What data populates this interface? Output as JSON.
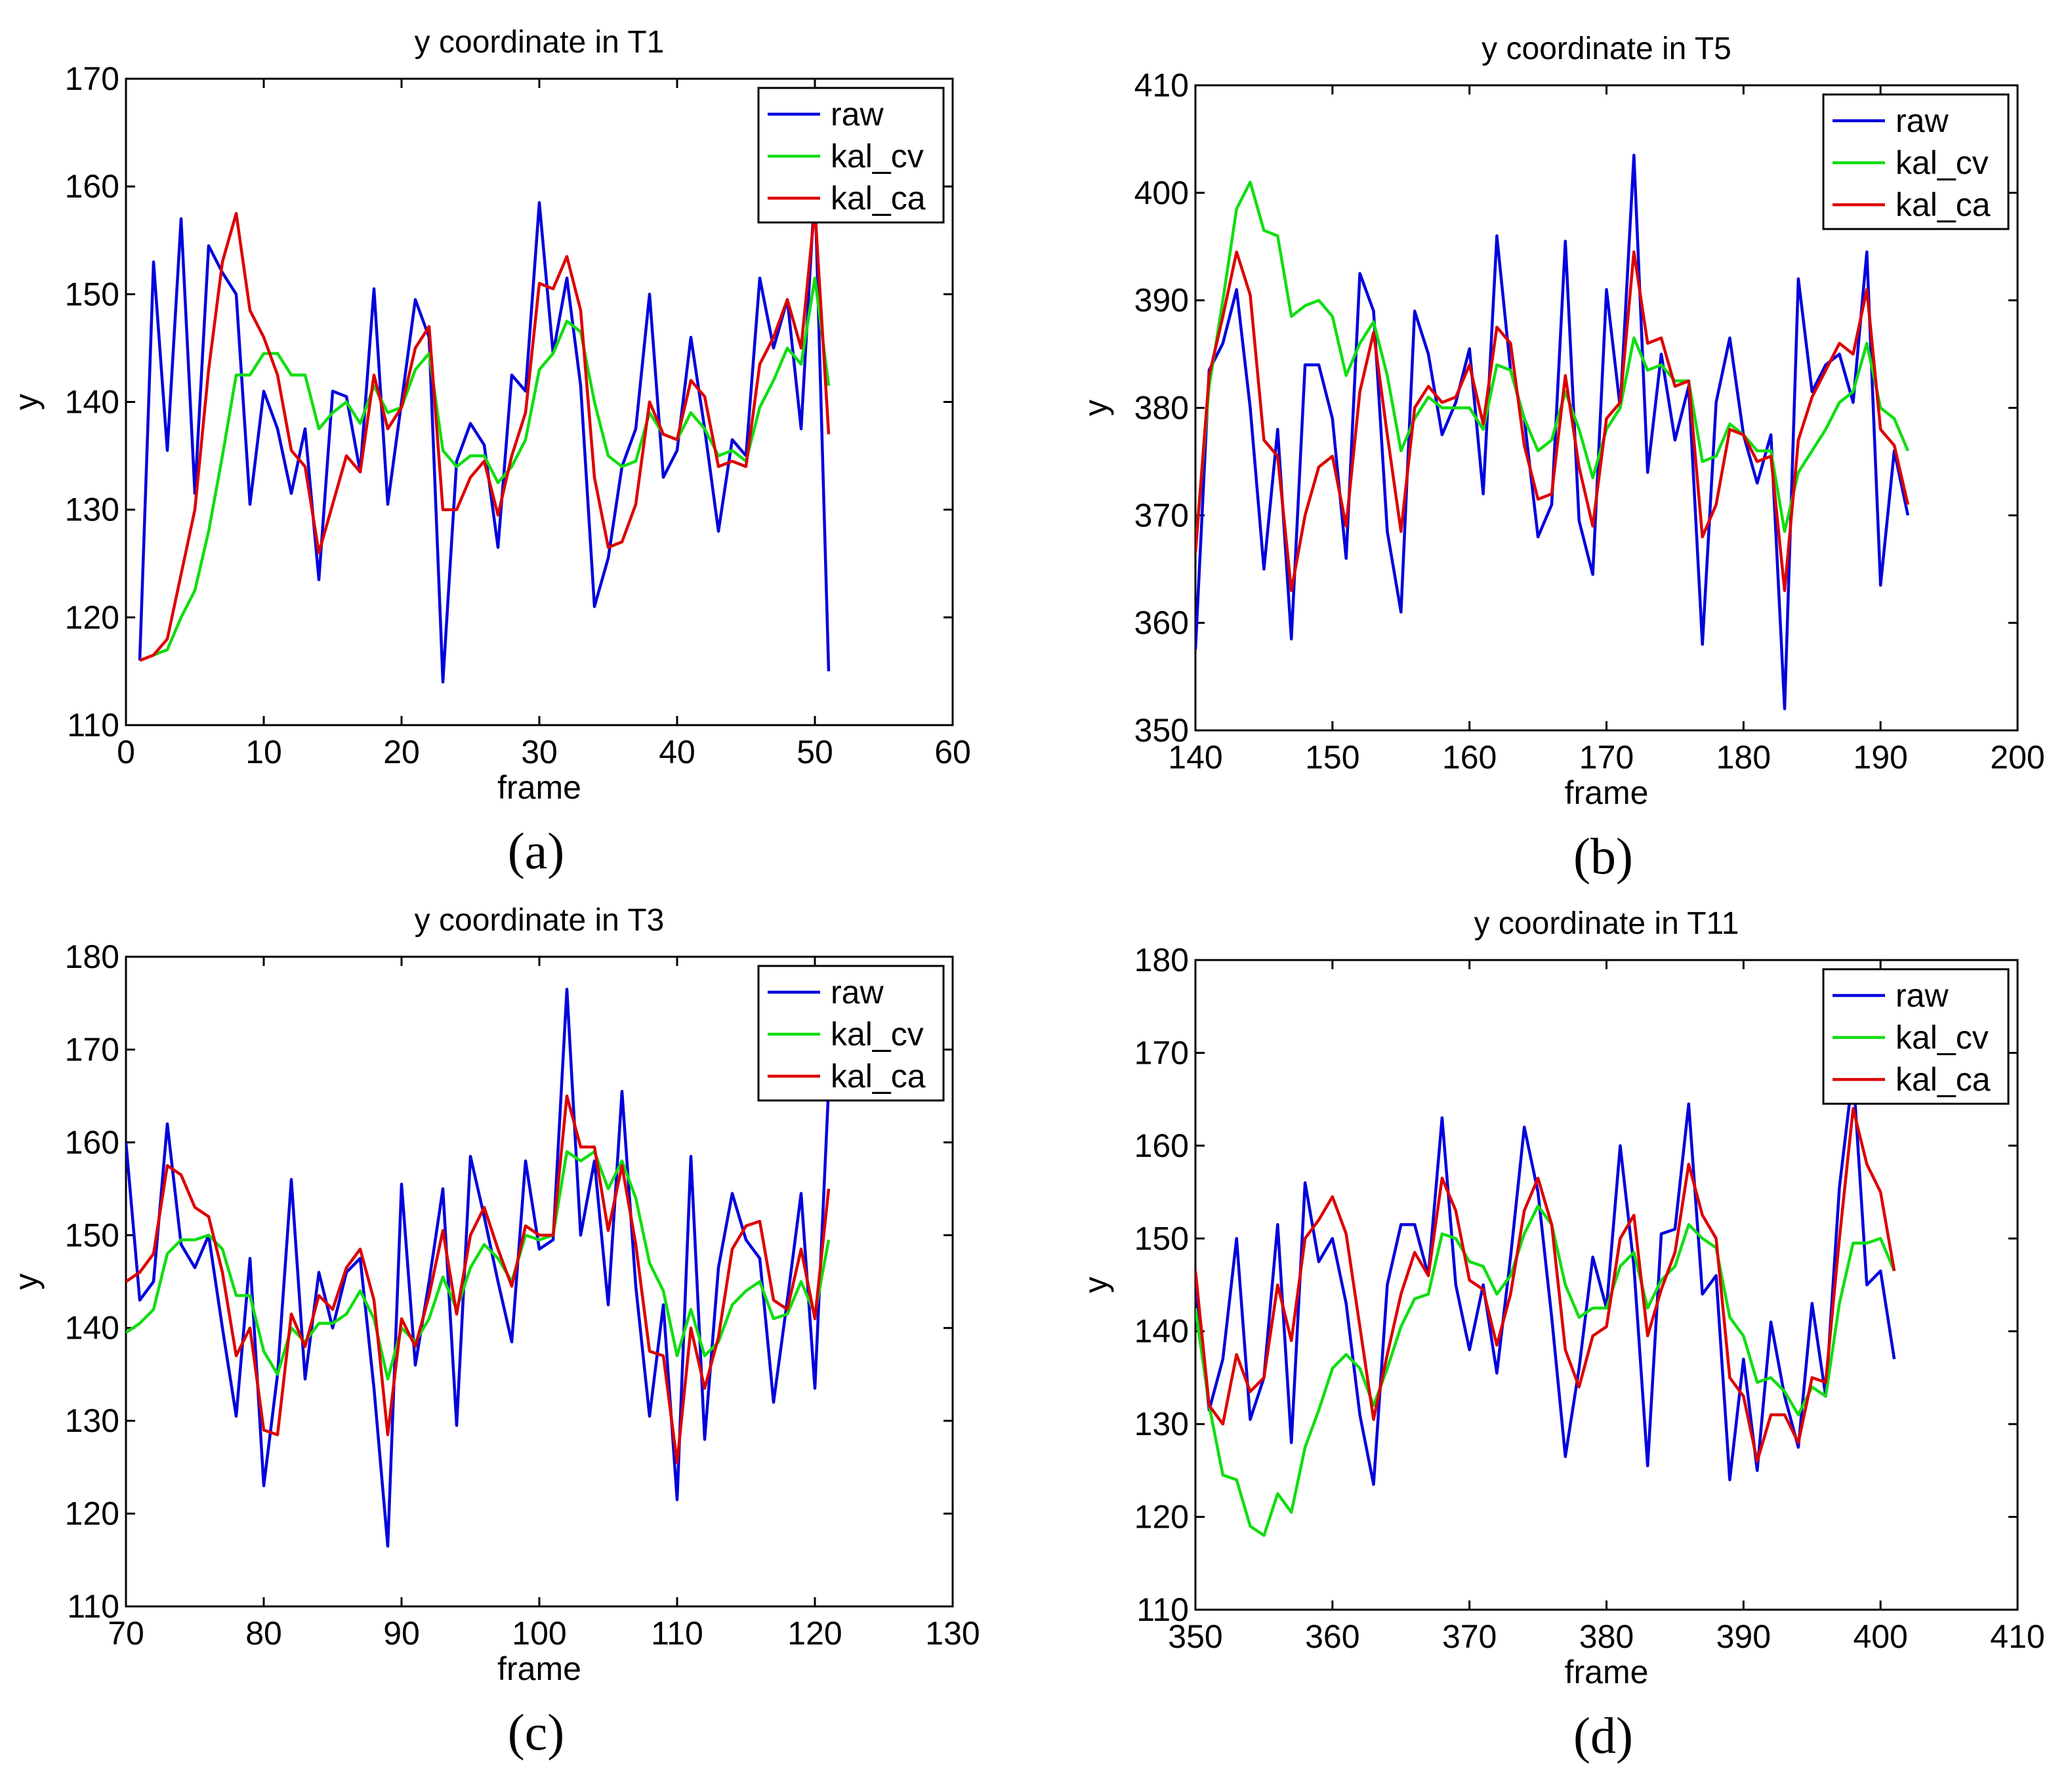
{
  "figure": {
    "colors": {
      "raw": "#0000dd",
      "kal_cv": "#11dd11",
      "kal_ca": "#dd0000",
      "axis": "#000000",
      "background": "#ffffff"
    }
  },
  "chart_data": [
    {
      "type": "line",
      "title": "y coordinate in T1",
      "xlabel": "frame",
      "ylabel": "y",
      "panel_label": "(a)",
      "xlim": [
        0,
        60
      ],
      "ylim": [
        110,
        170
      ],
      "xticks": [
        0,
        10,
        20,
        30,
        40,
        50,
        60
      ],
      "yticks": [
        110,
        120,
        130,
        140,
        150,
        160,
        170
      ],
      "legend": {
        "position": "top-right",
        "entries": [
          "raw",
          "kal_cv",
          "kal_ca"
        ]
      },
      "x_start": 1,
      "series": [
        {
          "name": "raw",
          "color": "#0000dd",
          "values": [
            116,
            153,
            135.5,
            157,
            131.5,
            154.5,
            152,
            150,
            130.5,
            141,
            137.5,
            131.5,
            137.5,
            123.5,
            141,
            140.5,
            133.5,
            150.5,
            130.5,
            140,
            149.5,
            146,
            114,
            134.5,
            138,
            136,
            126.5,
            142.5,
            141,
            158.5,
            144.5,
            151.5,
            141.5,
            121,
            125.5,
            134,
            137.5,
            150,
            133,
            135.5,
            146,
            137.5,
            128,
            136.5,
            135,
            151.5,
            145,
            149.5,
            137.5,
            160,
            115
          ]
        },
        {
          "name": "kal_cv",
          "color": "#11dd11",
          "values": [
            116,
            116.5,
            117,
            120,
            122.5,
            128,
            135,
            142.5,
            142.5,
            144.5,
            144.5,
            142.5,
            142.5,
            137.5,
            139,
            140,
            138,
            141.5,
            139,
            139.5,
            143,
            144.5,
            135.5,
            134,
            135,
            135,
            132.5,
            134,
            136.5,
            143,
            144.5,
            147.5,
            146.5,
            140,
            135,
            134,
            134.5,
            139,
            137,
            136.5,
            139,
            137.5,
            135,
            135.5,
            134.5,
            139.5,
            142,
            145,
            143.5,
            151.5,
            141.5
          ]
        },
        {
          "name": "kal_ca",
          "color": "#dd0000",
          "values": [
            116,
            116.5,
            118,
            124,
            130,
            143,
            153,
            157.5,
            148.5,
            146,
            142.5,
            135.5,
            134,
            126,
            130.5,
            135,
            133.5,
            142.5,
            137.5,
            139.5,
            145,
            147,
            130,
            130,
            133,
            134.5,
            129.5,
            135,
            139,
            151,
            150.5,
            153.5,
            148.5,
            133,
            126.5,
            127,
            130.5,
            140,
            137,
            136.5,
            142,
            140.5,
            134,
            134.5,
            134,
            143.5,
            146,
            149.5,
            145,
            158,
            137
          ]
        }
      ]
    },
    {
      "type": "line",
      "title": "y coordinate in T5",
      "xlabel": "frame",
      "ylabel": "y",
      "panel_label": "(b)",
      "xlim": [
        140,
        200
      ],
      "ylim": [
        350,
        410
      ],
      "xticks": [
        140,
        150,
        160,
        170,
        180,
        190,
        200
      ],
      "yticks": [
        350,
        360,
        370,
        380,
        390,
        400,
        410
      ],
      "legend": {
        "position": "top-right",
        "entries": [
          "raw",
          "kal_cv",
          "kal_ca"
        ]
      },
      "x_start": 140,
      "series": [
        {
          "name": "raw",
          "color": "#0000dd",
          "values": [
            357.5,
            383.5,
            386,
            391,
            380,
            365,
            378,
            358.5,
            384,
            384,
            379,
            366,
            392.5,
            389,
            368.5,
            361,
            389,
            385,
            377.5,
            380.5,
            385.5,
            372,
            396,
            383.5,
            379,
            368,
            371,
            395.5,
            369.5,
            364.5,
            391,
            380,
            403.5,
            374,
            385,
            377,
            382,
            358,
            380.5,
            386.5,
            377.5,
            373,
            377.5,
            352,
            392,
            381.5,
            384,
            385,
            380.5,
            394.5,
            363.5,
            376,
            370
          ]
        },
        {
          "name": "kal_cv",
          "color": "#11dd11",
          "values": [
            367,
            382,
            390,
            398.5,
            401,
            396.5,
            396,
            388.5,
            389.5,
            390,
            388.5,
            383,
            386,
            388,
            383,
            376,
            379,
            381,
            380,
            380,
            380,
            378,
            384,
            383.5,
            379,
            376,
            377,
            381.5,
            378,
            373.5,
            378,
            380,
            386.5,
            383.5,
            384,
            382.5,
            382.5,
            375,
            375.5,
            378.5,
            377.5,
            376,
            376,
            368.5,
            374,
            376,
            378,
            380.5,
            381.5,
            386,
            380,
            379,
            376
          ]
        },
        {
          "name": "kal_ca",
          "color": "#dd0000",
          "values": [
            366.5,
            383,
            388.5,
            394.5,
            390.5,
            377,
            375.5,
            363,
            370,
            374.5,
            375.5,
            369,
            381.5,
            387,
            377.5,
            368.5,
            380,
            382,
            380.5,
            381,
            384,
            378.5,
            387.5,
            386,
            376.5,
            371.5,
            372,
            383,
            374.5,
            369,
            379,
            380.5,
            394.5,
            386,
            386.5,
            382,
            382.5,
            368,
            371,
            378,
            377.5,
            375,
            375.5,
            363,
            377,
            381,
            383.5,
            386,
            385,
            391,
            378,
            376.5,
            371
          ]
        }
      ]
    },
    {
      "type": "line",
      "title": "y coordinate in T3",
      "xlabel": "frame",
      "ylabel": "y",
      "panel_label": "(c)",
      "xlim": [
        70,
        130
      ],
      "ylim": [
        110,
        180
      ],
      "xticks": [
        70,
        80,
        90,
        100,
        110,
        120,
        130
      ],
      "yticks": [
        110,
        120,
        130,
        140,
        150,
        160,
        170,
        180
      ],
      "legend": {
        "position": "top-right",
        "entries": [
          "raw",
          "kal_cv",
          "kal_ca"
        ]
      },
      "x_start": 70,
      "series": [
        {
          "name": "raw",
          "color": "#0000dd",
          "values": [
            160,
            143,
            145,
            162,
            149,
            146.5,
            150,
            140,
            130.5,
            147.5,
            123,
            135,
            156,
            134.5,
            146,
            140,
            146,
            147.5,
            133.5,
            116.5,
            155.5,
            136,
            145,
            155,
            129.5,
            158.5,
            152,
            145,
            138.5,
            158,
            148.5,
            149.5,
            176.5,
            150,
            158,
            142.5,
            165.5,
            144.5,
            130.5,
            142.5,
            121.5,
            158.5,
            128,
            146.5,
            154.5,
            149.5,
            147.5,
            132,
            143,
            154.5,
            133.5,
            166
          ]
        },
        {
          "name": "kal_cv",
          "color": "#11dd11",
          "values": [
            139.5,
            140.5,
            142,
            148,
            149.5,
            149.5,
            150,
            148.5,
            143.5,
            143.5,
            137.5,
            135,
            140,
            138.5,
            140.5,
            140.5,
            141.5,
            144,
            141,
            134.5,
            140,
            138.5,
            141,
            145.5,
            142,
            146.5,
            149,
            147.5,
            145,
            150,
            149.5,
            150,
            159,
            158,
            159,
            155,
            158,
            154,
            147,
            144,
            137,
            142,
            137,
            138.5,
            142.5,
            144,
            145,
            141,
            141.5,
            145,
            141.5,
            149.5
          ]
        },
        {
          "name": "kal_ca",
          "color": "#dd0000",
          "values": [
            145,
            146,
            148,
            157.5,
            156.5,
            153,
            152,
            146,
            137,
            140,
            129,
            128.5,
            141.5,
            138,
            143.5,
            142,
            146.5,
            148.5,
            143,
            128.5,
            141,
            138,
            143.5,
            150.5,
            141.5,
            150,
            153,
            148.5,
            144.5,
            151,
            150,
            150,
            165,
            159.5,
            159.5,
            150.5,
            157.5,
            149,
            137.5,
            137,
            125.5,
            140,
            133.5,
            139,
            148.5,
            151,
            151.5,
            143,
            142,
            148.5,
            141,
            155
          ]
        }
      ]
    },
    {
      "type": "line",
      "title": "y coordinate in T11",
      "xlabel": "frame",
      "ylabel": "y",
      "panel_label": "(d)",
      "xlim": [
        350,
        410
      ],
      "ylim": [
        110,
        180
      ],
      "xticks": [
        350,
        360,
        370,
        380,
        390,
        400,
        410
      ],
      "yticks": [
        110,
        120,
        130,
        140,
        150,
        160,
        170,
        180
      ],
      "legend": {
        "position": "top-right",
        "entries": [
          "raw",
          "kal_cv",
          "kal_ca"
        ]
      },
      "x_start": 350,
      "series": [
        {
          "name": "raw",
          "color": "#0000dd",
          "values": [
            145,
            131.5,
            137,
            150,
            130.5,
            135,
            151.5,
            128,
            156,
            147.5,
            150,
            143,
            131,
            123.5,
            145,
            151.5,
            151.5,
            146,
            163,
            145,
            138,
            145,
            135.5,
            148,
            162,
            155,
            141.5,
            126.5,
            136,
            148,
            142.5,
            160,
            147,
            125.5,
            150.5,
            151,
            164.5,
            144,
            146,
            124,
            137,
            125,
            141,
            133,
            127.5,
            143,
            133,
            155.5,
            168,
            145,
            146.5,
            137
          ]
        },
        {
          "name": "kal_cv",
          "color": "#11dd11",
          "values": [
            142.5,
            132,
            124.5,
            124,
            119,
            118,
            122.5,
            120.5,
            127.5,
            131.5,
            136,
            137.5,
            136,
            132,
            136,
            140.5,
            143.5,
            144,
            150.5,
            150,
            147.5,
            147,
            144,
            146,
            150.5,
            153.5,
            151.5,
            145,
            141.5,
            142.5,
            142.5,
            147,
            148.5,
            142.5,
            145.5,
            147,
            151.5,
            150,
            149,
            141.5,
            139.5,
            134.5,
            135,
            133.5,
            131,
            134,
            133,
            143,
            149.5,
            149.5,
            150,
            146.5
          ]
        },
        {
          "name": "kal_ca",
          "color": "#dd0000",
          "values": [
            146.5,
            132,
            130,
            137.5,
            133.5,
            135,
            145,
            139,
            150,
            152,
            154.5,
            150.5,
            140.5,
            130.5,
            137.5,
            144,
            148.5,
            146,
            156.5,
            153,
            145.5,
            144.5,
            138.5,
            144,
            153,
            156.5,
            151.5,
            138,
            134,
            139.5,
            140.5,
            150,
            152.5,
            139.5,
            144.5,
            148.5,
            158,
            152.5,
            150,
            135,
            133,
            126,
            131,
            131,
            128,
            135,
            134.5,
            150,
            164,
            158,
            155,
            146.5
          ]
        }
      ]
    }
  ]
}
